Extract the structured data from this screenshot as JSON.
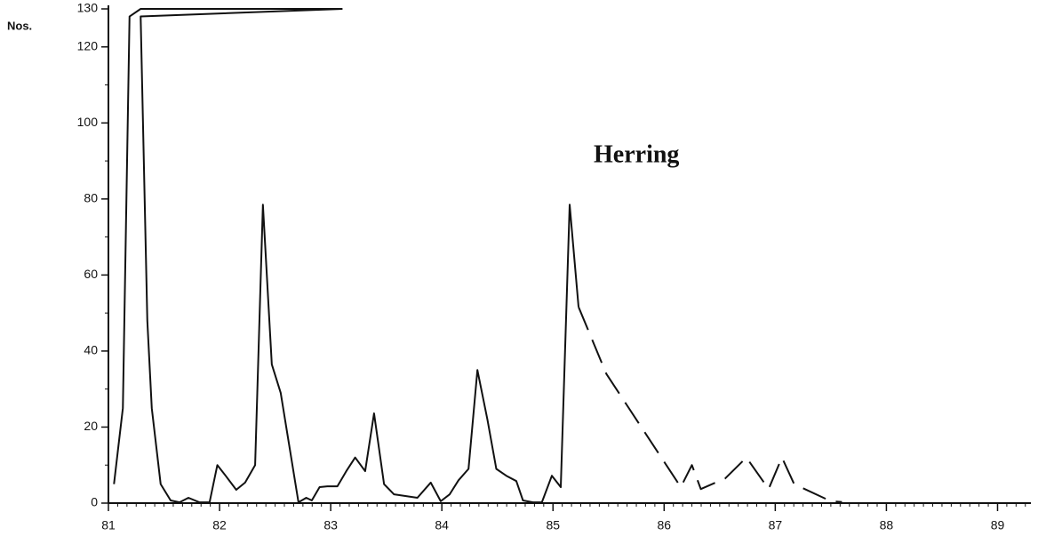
{
  "chart_data": {
    "type": "line",
    "y_label": "Nos.",
    "annotation": "Herring",
    "xlim": [
      81,
      89.3
    ],
    "xticks": [
      81,
      82,
      83,
      84,
      85,
      86,
      87,
      88,
      89
    ],
    "ylim": [
      0,
      130
    ],
    "yticks": [
      0,
      20,
      40,
      60,
      80,
      100,
      120,
      130
    ],
    "grid": false,
    "series": [
      {
        "color": "#111",
        "dashed": false,
        "x": [
          81.05,
          81.13,
          81.19,
          81.29,
          83.1,
          81.29,
          81.35,
          81.39,
          81.47,
          81.56,
          81.64,
          81.72,
          81.82,
          81.91,
          81.98,
          82.06,
          82.15,
          82.23,
          82.32,
          82.39,
          82.47,
          82.55,
          82.71,
          82.78,
          82.83,
          82.9,
          82.97,
          83.06,
          83.14,
          83.22,
          83.31,
          83.39,
          83.48,
          83.57,
          83.78,
          83.9,
          83.99,
          84.07,
          84.15,
          84.24,
          84.32,
          84.41,
          84.49,
          84.58,
          84.67,
          84.73,
          84.82,
          84.9,
          84.99,
          85.07,
          85.15,
          85.23
        ],
        "values": [
          5,
          25,
          128,
          130,
          130,
          128,
          48,
          25,
          5,
          0.7,
          0.2,
          1.4,
          0.2,
          0.2,
          10,
          7,
          3.5,
          5.4,
          10,
          78.5,
          36.5,
          29,
          0.2,
          1.4,
          0.7,
          4.2,
          4.4,
          4.4,
          8.4,
          12,
          8.4,
          23.6,
          5,
          2.3,
          1.4,
          5.4,
          0.5,
          2.3,
          6,
          9,
          35,
          22,
          9,
          7.2,
          5.8,
          0.7,
          0.2,
          0.2,
          7.2,
          4.2,
          78.5,
          51.6
        ]
      },
      {
        "color": "#111",
        "dashed": true,
        "x": [
          85.23,
          85.48,
          86.15,
          86.25,
          86.33,
          86.55,
          86.74,
          86.94,
          87.06,
          87.17,
          87.5,
          87.6
        ],
        "values": [
          51.6,
          34,
          4.2,
          10,
          3.7,
          6.5,
          12,
          3.7,
          12,
          5,
          0.5,
          0.3
        ]
      }
    ]
  }
}
